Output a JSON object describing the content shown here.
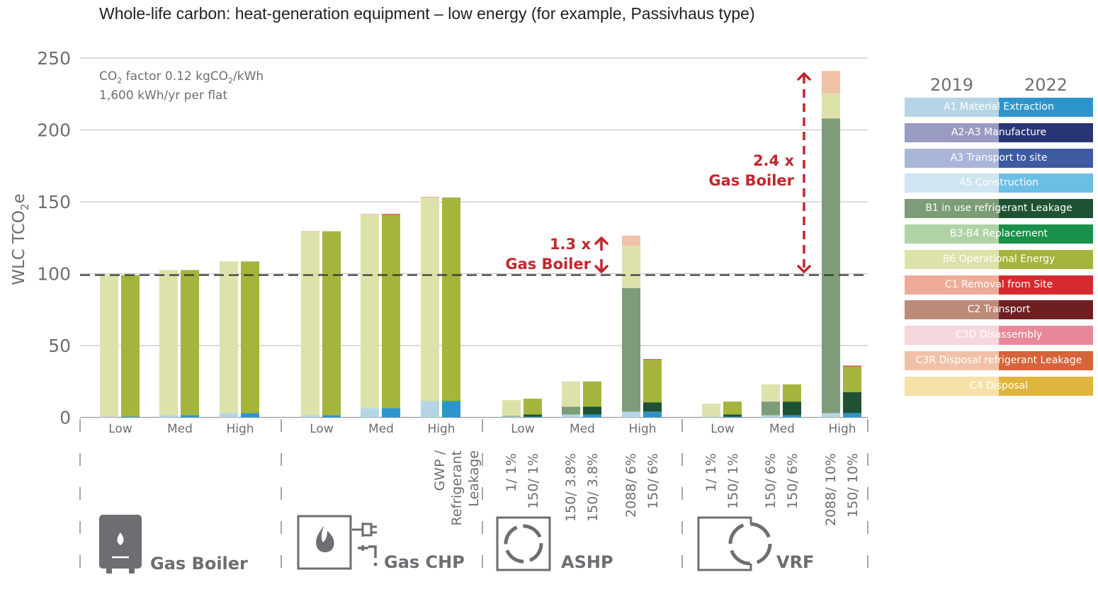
{
  "title": "Whole-life carbon: heat-generation equipment – low energy (for example, Passivhaus type)",
  "notes": {
    "line1_prefix": "CO",
    "line1_sub": "2",
    "line1_mid": " factor 0.12 kgCO",
    "line1_sub2": "2",
    "line1_suffix": "/kWh",
    "line2": "1,600 kWh/yr per flat"
  },
  "annotations": {
    "ashp_multiplier": "1.3 x",
    "ashp_label": "Gas Boiler",
    "vrf_multiplier": "2.4 x",
    "vrf_label": "Gas Boiler"
  },
  "categories": {
    "gas_boiler": "Gas Boiler",
    "gas_chp": "Gas CHP",
    "ashp": "ASHP",
    "vrf": "VRF"
  },
  "legend": {
    "year_2019": "2019",
    "year_2022": "2022",
    "items": [
      {
        "label": "A1 Material Extraction",
        "color2019": "#b5d5e6",
        "color2022": "#2e95cc"
      },
      {
        "label": "A2-A3 Manufacture",
        "color2019": "#9a9bc3",
        "color2022": "#283575"
      },
      {
        "label": "A3 Transport to site",
        "color2019": "#aab6d8",
        "color2022": "#3e5aa0"
      },
      {
        "label": "A5 Construction",
        "color2019": "#cfe6f1",
        "color2022": "#6cbfe4"
      },
      {
        "label": "B1 in use refrigerant Leakage",
        "color2019": "#7d9c77",
        "color2022": "#1f5232"
      },
      {
        "label": "B3-B4 Replacement",
        "color2019": "#b0d3a6",
        "color2022": "#19914b"
      },
      {
        "label": "B6 Operational Energy",
        "color2019": "#dde2ab",
        "color2022": "#a4b43c"
      },
      {
        "label": "C1 Removal from Site",
        "color2019": "#eeac97",
        "color2022": "#d52b30"
      },
      {
        "label": "C2 Transport",
        "color2019": "#bc8a78",
        "color2022": "#6d1f22"
      },
      {
        "label": "C3D Disassembly",
        "color2019": "#f6d7dc",
        "color2022": "#e8899a"
      },
      {
        "label": "C3R Disposal refrigerant Leakage",
        "color2019": "#f1c1a7",
        "color2022": "#d6633a"
      },
      {
        "label": "C4 Disposal",
        "color2019": "#f6e1a8",
        "color2022": "#e0b53d"
      }
    ]
  },
  "chart_data": {
    "type": "bar",
    "stacked": true,
    "ylabel": "WLC TCO2e",
    "ylim": [
      0,
      250
    ],
    "yticks": [
      0,
      50,
      100,
      150,
      200,
      250
    ],
    "grid": true,
    "legend_position": "right",
    "reference_line": {
      "value": 99,
      "style": "dashed"
    },
    "rotated_axis_title": "GWP / Refrigerant Leakage",
    "groups": [
      {
        "name": "Gas Boiler",
        "subgroups": [
          {
            "label": "Low",
            "bars": [
              {
                "year": "2019",
                "params": "",
                "values": {
                  "A1 Material Extraction": 0.5,
                  "B6 Operational Energy": 98.5
                }
              },
              {
                "year": "2022",
                "params": "",
                "values": {
                  "A1 Material Extraction": 0.5,
                  "B6 Operational Energy": 98.5
                }
              }
            ]
          },
          {
            "label": "Med",
            "bars": [
              {
                "year": "2019",
                "params": "",
                "values": {
                  "A1 Material Extraction": 1.5,
                  "B6 Operational Energy": 101
                }
              },
              {
                "year": "2022",
                "params": "",
                "values": {
                  "A1 Material Extraction": 1.5,
                  "B6 Operational Energy": 101
                }
              }
            ]
          },
          {
            "label": "High",
            "bars": [
              {
                "year": "2019",
                "params": "",
                "values": {
                  "A1 Material Extraction": 3,
                  "B6 Operational Energy": 105.5
                }
              },
              {
                "year": "2022",
                "params": "",
                "values": {
                  "A1 Material Extraction": 3,
                  "B6 Operational Energy": 105.5
                }
              }
            ]
          }
        ]
      },
      {
        "name": "Gas CHP",
        "subgroups": [
          {
            "label": "Low",
            "bars": [
              {
                "year": "2019",
                "params": "",
                "values": {
                  "A1 Material Extraction": 1.5,
                  "B6 Operational Energy": 127.5,
                  "C1 Removal from Site": 0.5
                }
              },
              {
                "year": "2022",
                "params": "",
                "values": {
                  "A1 Material Extraction": 1.5,
                  "B6 Operational Energy": 128
                }
              }
            ]
          },
          {
            "label": "Med",
            "bars": [
              {
                "year": "2019",
                "params": "",
                "values": {
                  "A1 Material Extraction": 6.5,
                  "B6 Operational Energy": 134.5,
                  "C1 Removal from Site": 0.5
                }
              },
              {
                "year": "2022",
                "params": "",
                "values": {
                  "A1 Material Extraction": 6.5,
                  "B6 Operational Energy": 134.5,
                  "C1 Removal from Site": 0.5
                }
              }
            ]
          },
          {
            "label": "High",
            "bars": [
              {
                "year": "2019",
                "params": "",
                "values": {
                  "A1 Material Extraction": 11,
                  "B3-B4 Replacement": 0.5,
                  "B6 Operational Energy": 141.5,
                  "C1 Removal from Site": 0.5
                }
              },
              {
                "year": "2022",
                "params": "",
                "values": {
                  "A1 Material Extraction": 11,
                  "B3-B4 Replacement": 0.5,
                  "B6 Operational Energy": 141.5
                }
              }
            ]
          }
        ]
      },
      {
        "name": "ASHP",
        "subgroups": [
          {
            "label": "Low",
            "bars": [
              {
                "year": "2019",
                "params": "1/ 1%",
                "values": {
                  "A1 Material Extraction": 0.5,
                  "B1 in use refrigerant Leakage": 0.5,
                  "B6 Operational Energy": 11
                }
              },
              {
                "year": "2022",
                "params": "150/ 1%",
                "values": {
                  "A1 Material Extraction": 0.5,
                  "B1 in use refrigerant Leakage": 1.5,
                  "B6 Operational Energy": 11
                }
              }
            ]
          },
          {
            "label": "Med",
            "bars": [
              {
                "year": "2019",
                "params": "150/ 3.8%",
                "values": {
                  "A1 Material Extraction": 2,
                  "B1 in use refrigerant Leakage": 5.5,
                  "B6 Operational Energy": 17.5
                }
              },
              {
                "year": "2022",
                "params": "150/ 3.8%",
                "values": {
                  "A1 Material Extraction": 2,
                  "B1 in use refrigerant Leakage": 5.5,
                  "B6 Operational Energy": 17.5
                }
              }
            ]
          },
          {
            "label": "High",
            "bars": [
              {
                "year": "2019",
                "params": "2088/ 6%",
                "values": {
                  "A1 Material Extraction": 4,
                  "B1 in use refrigerant Leakage": 86,
                  "B6 Operational Energy": 29.5,
                  "C3R Disposal refrigerant Leakage": 7
                }
              },
              {
                "year": "2022",
                "params": "150/ 6%",
                "values": {
                  "A1 Material Extraction": 4,
                  "B1 in use refrigerant Leakage": 6.5,
                  "B6 Operational Energy": 29.5,
                  "C1 Removal from Site": 0.5
                }
              }
            ]
          }
        ]
      },
      {
        "name": "VRF",
        "subgroups": [
          {
            "label": "Low",
            "bars": [
              {
                "year": "2019",
                "params": "1/ 1%",
                "values": {
                  "A1 Material Extraction": 0.5,
                  "B6 Operational Energy": 9
                }
              },
              {
                "year": "2022",
                "params": "150/ 1%",
                "values": {
                  "A1 Material Extraction": 0.5,
                  "B1 in use refrigerant Leakage": 1.5,
                  "B6 Operational Energy": 9
                }
              }
            ]
          },
          {
            "label": "Med",
            "bars": [
              {
                "year": "2019",
                "params": "150/ 6%",
                "values": {
                  "A1 Material Extraction": 1.5,
                  "B1 in use refrigerant Leakage": 9.5,
                  "B6 Operational Energy": 12
                }
              },
              {
                "year": "2022",
                "params": "150/ 6%",
                "values": {
                  "A1 Material Extraction": 1.5,
                  "B1 in use refrigerant Leakage": 9.5,
                  "B6 Operational Energy": 12
                }
              }
            ]
          },
          {
            "label": "High",
            "bars": [
              {
                "year": "2019",
                "params": "2088/ 10%",
                "values": {
                  "A1 Material Extraction": 3,
                  "B1 in use refrigerant Leakage": 205,
                  "B6 Operational Energy": 17.5,
                  "C3R Disposal refrigerant Leakage": 15.5
                }
              },
              {
                "year": "2022",
                "params": "150/ 10%",
                "values": {
                  "A1 Material Extraction": 3,
                  "B1 in use refrigerant Leakage": 14.5,
                  "B6 Operational Energy": 18,
                  "C1 Removal from Site": 0.5
                }
              }
            ]
          }
        ]
      }
    ]
  }
}
